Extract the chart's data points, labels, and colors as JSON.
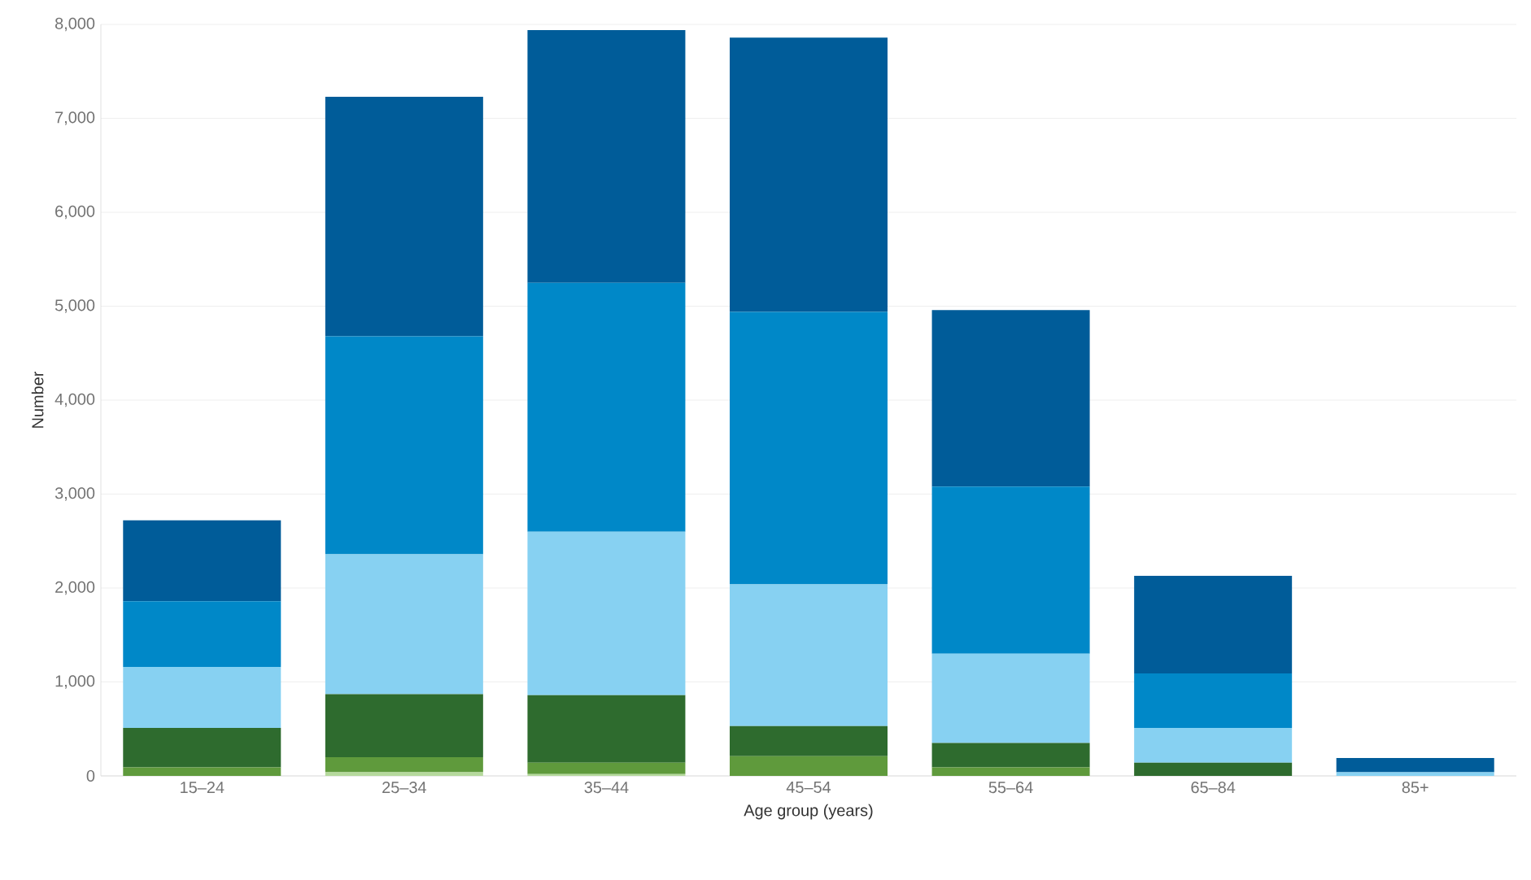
{
  "chart_data": {
    "type": "bar",
    "stacked": true,
    "xlabel": "Age group (years)",
    "ylabel": "Number",
    "categories": [
      "15–24",
      "25–34",
      "35–44",
      "45–54",
      "55–64",
      "65–84",
      "85+"
    ],
    "series": [
      {
        "color": "#b5d99c",
        "values": [
          0,
          40,
          20,
          0,
          0,
          0,
          0
        ]
      },
      {
        "color": "#5f9a3c",
        "values": [
          90,
          160,
          120,
          210,
          90,
          0,
          0
        ]
      },
      {
        "color": "#2e6b2e",
        "values": [
          420,
          670,
          720,
          320,
          260,
          140,
          0
        ]
      },
      {
        "color": "#87d1f2",
        "values": [
          650,
          1490,
          1740,
          1510,
          950,
          370,
          40
        ]
      },
      {
        "color": "#0088c8",
        "values": [
          700,
          2320,
          2650,
          2900,
          1780,
          580,
          0
        ]
      },
      {
        "color": "#005c99",
        "values": [
          860,
          2550,
          2690,
          2920,
          1880,
          1040,
          150
        ]
      }
    ],
    "ylim": [
      0,
      8000
    ],
    "yticks": [
      {
        "value": 0,
        "label": "0"
      },
      {
        "value": 1000,
        "label": "1,000"
      },
      {
        "value": 2000,
        "label": "2,000"
      },
      {
        "value": 3000,
        "label": "3,000"
      },
      {
        "value": 4000,
        "label": "4,000"
      },
      {
        "value": 5000,
        "label": "5,000"
      },
      {
        "value": 6000,
        "label": "6,000"
      },
      {
        "value": 7000,
        "label": "7,000"
      },
      {
        "value": 8000,
        "label": "8,000"
      }
    ],
    "grid": "y"
  }
}
